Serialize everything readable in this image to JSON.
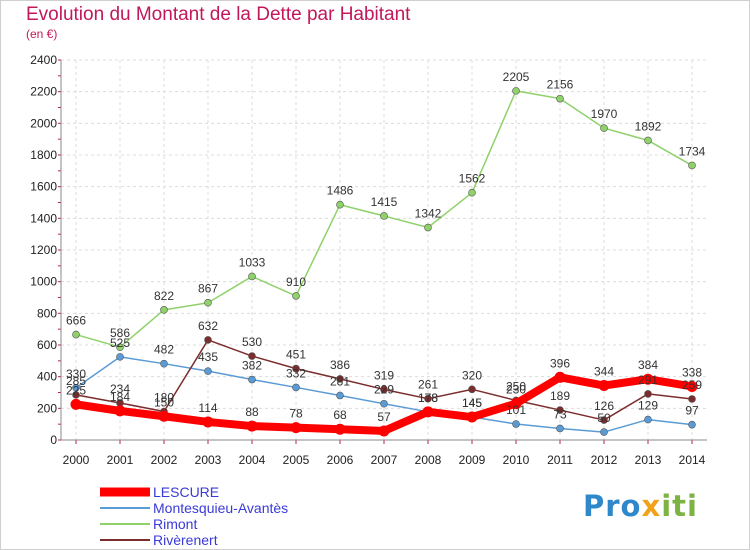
{
  "chart_data": {
    "type": "line",
    "title": "Evolution du Montant de la Dette par Habitant",
    "subtitle": "(en €)",
    "x": [
      "2000",
      "2001",
      "2002",
      "2003",
      "2004",
      "2005",
      "2006",
      "2007",
      "2008",
      "2009",
      "2010",
      "2011",
      "2012",
      "2013",
      "2014"
    ],
    "ylim": [
      0,
      2400
    ],
    "yticks": [
      0,
      200,
      400,
      600,
      800,
      1000,
      1200,
      1400,
      1600,
      1800,
      2000,
      2200,
      2400
    ],
    "grid": true,
    "legend_position": "bottom-left",
    "series": [
      {
        "name": "LESCURE",
        "color": "#ff0000",
        "values": [
          225,
          184,
          150,
          114,
          88,
          78,
          68,
          57,
          178,
          145,
          230,
          396,
          344,
          384,
          338
        ]
      },
      {
        "name": "Montesquieu-Avantès",
        "color": "#5b9bd5",
        "values": [
          330,
          525,
          482,
          435,
          382,
          332,
          281,
          229,
          178,
          145,
          101,
          73,
          50,
          129,
          97
        ]
      },
      {
        "name": "Rimont",
        "color": "#8fd16a",
        "values": [
          666,
          586,
          822,
          867,
          1033,
          910,
          1486,
          1415,
          1342,
          1562,
          2205,
          2156,
          1970,
          1892,
          1734
        ]
      },
      {
        "name": "Rivèrenert",
        "color": "#7b2d2d",
        "values": [
          285,
          234,
          180,
          632,
          530,
          451,
          386,
          319,
          261,
          320,
          250,
          189,
          126,
          291,
          259
        ]
      }
    ]
  },
  "logo": {
    "p1": "Pro",
    "p2": "x",
    "p3": "iti"
  }
}
